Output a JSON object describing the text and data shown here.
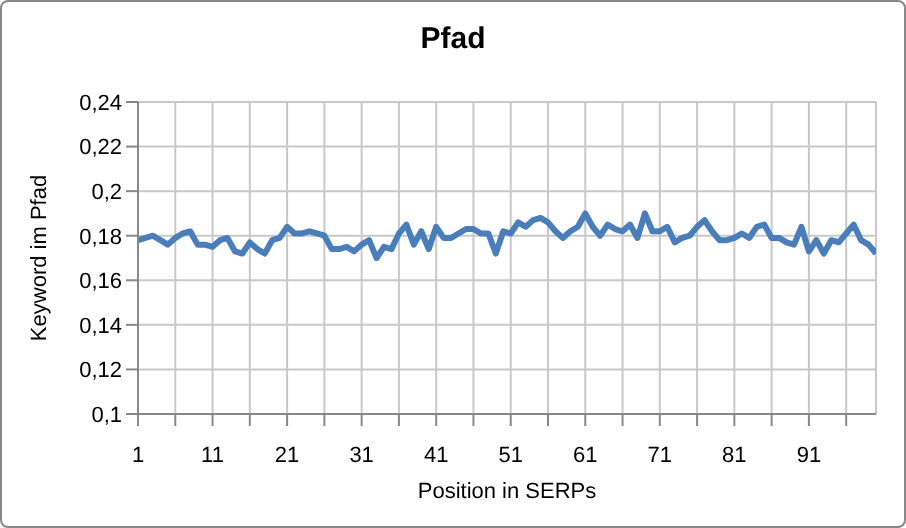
{
  "chart_data": {
    "type": "line",
    "title": "Pfad",
    "xlabel": "Position in SERPs",
    "ylabel": "Keyword im Pfad",
    "categories": [
      "1",
      null,
      null,
      null,
      null,
      null,
      null,
      null,
      null,
      null,
      "11",
      null,
      null,
      null,
      null,
      null,
      null,
      null,
      null,
      null,
      "21",
      null,
      null,
      null,
      null,
      null,
      null,
      null,
      null,
      null,
      "31",
      null,
      null,
      null,
      null,
      null,
      null,
      null,
      null,
      null,
      "41",
      null,
      null,
      null,
      null,
      null,
      null,
      null,
      null,
      null,
      "51",
      null,
      null,
      null,
      null,
      null,
      null,
      null,
      null,
      null,
      "61",
      null,
      null,
      null,
      null,
      null,
      null,
      null,
      null,
      null,
      "71",
      null,
      null,
      null,
      null,
      null,
      null,
      null,
      null,
      null,
      "81",
      null,
      null,
      null,
      null,
      null,
      null,
      null,
      null,
      null,
      "91",
      null,
      null,
      null,
      null,
      null,
      null,
      null,
      null,
      null
    ],
    "series": [
      {
        "color": "#4a7ebb",
        "values": [
          0.178,
          0.179,
          0.18,
          0.178,
          0.176,
          0.179,
          0.181,
          0.182,
          0.176,
          0.176,
          0.175,
          0.178,
          0.179,
          0.173,
          0.172,
          0.177,
          0.174,
          0.172,
          0.178,
          0.179,
          0.184,
          0.181,
          0.181,
          0.182,
          0.181,
          0.18,
          0.174,
          0.174,
          0.175,
          0.173,
          0.176,
          0.178,
          0.17,
          0.175,
          0.174,
          0.181,
          0.185,
          0.176,
          0.182,
          0.174,
          0.184,
          0.179,
          0.179,
          0.181,
          0.183,
          0.183,
          0.181,
          0.181,
          0.172,
          0.182,
          0.181,
          0.186,
          0.184,
          0.187,
          0.188,
          0.186,
          0.182,
          0.179,
          0.182,
          0.184,
          0.19,
          0.184,
          0.18,
          0.185,
          0.183,
          0.182,
          0.185,
          0.179,
          0.19,
          0.182,
          0.182,
          0.184,
          0.177,
          0.179,
          0.18,
          0.184,
          0.187,
          0.182,
          0.178,
          0.178,
          0.179,
          0.181,
          0.179,
          0.184,
          0.185,
          0.179,
          0.179,
          0.177,
          0.176,
          0.184,
          0.173,
          0.178,
          0.172,
          0.178,
          0.177,
          0.181,
          0.185,
          0.178,
          0.176,
          0.172
        ]
      }
    ],
    "ylim": [
      0.1,
      0.24
    ],
    "yticks": [
      {
        "value": 0.1,
        "label": "0,1"
      },
      {
        "value": 0.12,
        "label": "0,12"
      },
      {
        "value": 0.14,
        "label": "0,14"
      },
      {
        "value": 0.16,
        "label": "0,16"
      },
      {
        "value": 0.18,
        "label": "0,18"
      },
      {
        "value": 0.2,
        "label": "0,2"
      },
      {
        "value": 0.22,
        "label": "0,22"
      },
      {
        "value": 0.24,
        "label": "0,24"
      }
    ],
    "grid": true,
    "marker": "none",
    "line_style": "solid"
  }
}
